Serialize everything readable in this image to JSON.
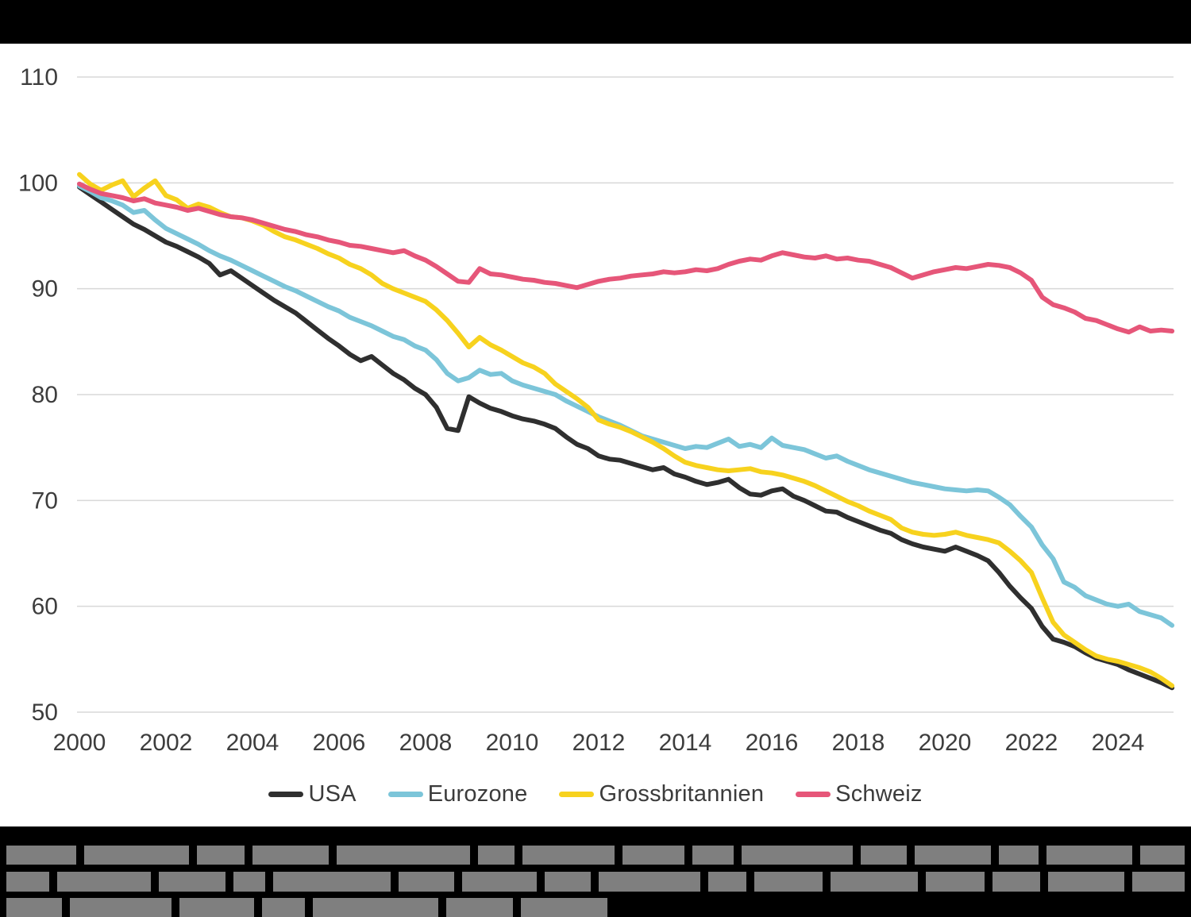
{
  "header": {
    "bar_color": "#000000"
  },
  "chart_data": {
    "type": "line",
    "title": "",
    "xlabel": "",
    "ylabel": "",
    "xlim": [
      2000,
      2025.3
    ],
    "ylim": [
      50,
      110
    ],
    "grid": "horizontal",
    "grid_color": "#d8d8d8",
    "tick_color": "#3d3d3d",
    "legend_position": "bottom-center",
    "xticks": [
      2000,
      2002,
      2004,
      2006,
      2008,
      2010,
      2012,
      2014,
      2016,
      2018,
      2020,
      2022,
      2024
    ],
    "yticks": [
      50,
      60,
      70,
      80,
      90,
      100,
      110
    ],
    "x_start": 2000,
    "x_step": 0.25,
    "series": [
      {
        "name": "USA",
        "color": "#2f2f2f",
        "values": [
          99.6,
          98.9,
          98.2,
          97.5,
          96.8,
          96.1,
          95.6,
          95.0,
          94.4,
          94.0,
          93.5,
          93.0,
          92.4,
          91.3,
          91.7,
          91.0,
          90.3,
          89.6,
          88.9,
          88.3,
          87.7,
          86.9,
          86.1,
          85.3,
          84.6,
          83.8,
          83.2,
          83.6,
          82.8,
          82.0,
          81.4,
          80.6,
          80.0,
          78.8,
          76.8,
          76.6,
          79.8,
          79.2,
          78.7,
          78.4,
          78.0,
          77.7,
          77.5,
          77.2,
          76.8,
          76.0,
          75.3,
          74.9,
          74.2,
          73.9,
          73.8,
          73.5,
          73.2,
          72.9,
          73.1,
          72.5,
          72.2,
          71.8,
          71.5,
          71.7,
          72.0,
          71.2,
          70.6,
          70.5,
          70.9,
          71.1,
          70.4,
          70.0,
          69.5,
          69.0,
          68.9,
          68.4,
          68.0,
          67.6,
          67.2,
          66.9,
          66.3,
          65.9,
          65.6,
          65.4,
          65.2,
          65.6,
          65.2,
          64.8,
          64.3,
          63.2,
          61.9,
          60.8,
          59.8,
          58.1,
          56.9,
          56.6,
          56.2,
          55.6,
          55.1,
          54.8,
          54.5,
          54.0,
          53.6,
          53.2,
          52.8,
          52.3
        ]
      },
      {
        "name": "Eurozone",
        "color": "#7cc5d9",
        "values": [
          99.7,
          99.2,
          98.6,
          98.3,
          97.9,
          97.2,
          97.4,
          96.5,
          95.7,
          95.2,
          94.7,
          94.2,
          93.6,
          93.1,
          92.7,
          92.2,
          91.7,
          91.2,
          90.7,
          90.2,
          89.8,
          89.3,
          88.8,
          88.3,
          87.9,
          87.3,
          86.9,
          86.5,
          86.0,
          85.5,
          85.2,
          84.6,
          84.2,
          83.3,
          82.0,
          81.3,
          81.6,
          82.3,
          81.9,
          82.0,
          81.3,
          80.9,
          80.6,
          80.3,
          80.0,
          79.4,
          78.9,
          78.4,
          77.9,
          77.5,
          77.1,
          76.6,
          76.1,
          75.8,
          75.5,
          75.2,
          74.9,
          75.1,
          75.0,
          75.4,
          75.8,
          75.1,
          75.3,
          75.0,
          75.9,
          75.2,
          75.0,
          74.8,
          74.4,
          74.0,
          74.2,
          73.7,
          73.3,
          72.9,
          72.6,
          72.3,
          72.0,
          71.7,
          71.5,
          71.3,
          71.1,
          71.0,
          70.9,
          71.0,
          70.9,
          70.3,
          69.6,
          68.5,
          67.5,
          65.8,
          64.5,
          62.3,
          61.8,
          61.0,
          60.6,
          60.2,
          60.0,
          60.2,
          59.5,
          59.2,
          58.9,
          58.2
        ]
      },
      {
        "name": "Grossbritannien",
        "color": "#f7d21e",
        "values": [
          100.8,
          99.9,
          99.3,
          99.8,
          100.2,
          98.7,
          99.5,
          100.2,
          98.8,
          98.4,
          97.6,
          98.0,
          97.7,
          97.2,
          96.8,
          96.7,
          96.4,
          96.0,
          95.4,
          94.9,
          94.6,
          94.2,
          93.8,
          93.3,
          92.9,
          92.3,
          91.9,
          91.3,
          90.5,
          90.0,
          89.6,
          89.2,
          88.8,
          88.0,
          87.0,
          85.8,
          84.5,
          85.4,
          84.7,
          84.2,
          83.6,
          83.0,
          82.6,
          82.0,
          81.0,
          80.3,
          79.6,
          78.8,
          77.6,
          77.2,
          76.9,
          76.5,
          76.0,
          75.5,
          74.9,
          74.2,
          73.6,
          73.3,
          73.1,
          72.9,
          72.8,
          72.9,
          73.0,
          72.7,
          72.6,
          72.4,
          72.1,
          71.8,
          71.4,
          70.9,
          70.4,
          69.9,
          69.5,
          69.0,
          68.6,
          68.2,
          67.4,
          67.0,
          66.8,
          66.7,
          66.8,
          67.0,
          66.7,
          66.5,
          66.3,
          66.0,
          65.2,
          64.3,
          63.2,
          60.8,
          58.5,
          57.3,
          56.6,
          55.9,
          55.3,
          55.0,
          54.8,
          54.5,
          54.2,
          53.8,
          53.2,
          52.5
        ]
      },
      {
        "name": "Schweiz",
        "color": "#e65679",
        "values": [
          99.9,
          99.4,
          99.0,
          98.8,
          98.6,
          98.3,
          98.5,
          98.1,
          97.9,
          97.7,
          97.4,
          97.6,
          97.3,
          97.0,
          96.8,
          96.7,
          96.5,
          96.2,
          95.9,
          95.6,
          95.4,
          95.1,
          94.9,
          94.6,
          94.4,
          94.1,
          94.0,
          93.8,
          93.6,
          93.4,
          93.6,
          93.1,
          92.7,
          92.1,
          91.4,
          90.7,
          90.6,
          91.9,
          91.4,
          91.3,
          91.1,
          90.9,
          90.8,
          90.6,
          90.5,
          90.3,
          90.1,
          90.4,
          90.7,
          90.9,
          91.0,
          91.2,
          91.3,
          91.4,
          91.6,
          91.5,
          91.6,
          91.8,
          91.7,
          91.9,
          92.3,
          92.6,
          92.8,
          92.7,
          93.1,
          93.4,
          93.2,
          93.0,
          92.9,
          93.1,
          92.8,
          92.9,
          92.7,
          92.6,
          92.3,
          92.0,
          91.5,
          91.0,
          91.3,
          91.6,
          91.8,
          92.0,
          91.9,
          92.1,
          92.3,
          92.2,
          92.0,
          91.5,
          90.8,
          89.2,
          88.5,
          88.2,
          87.8,
          87.2,
          87.0,
          86.6,
          86.2,
          85.9,
          86.4,
          86.0,
          86.1,
          86.0
        ]
      }
    ]
  },
  "legend": {
    "items": [
      {
        "label": "USA",
        "color": "#2f2f2f"
      },
      {
        "label": "Eurozone",
        "color": "#7cc5d9"
      },
      {
        "label": "Grossbritannien",
        "color": "#f7d21e"
      },
      {
        "label": "Schweiz",
        "color": "#e65679"
      }
    ]
  },
  "caption": {
    "style": "redacted-text",
    "block_color": "#7f7f7f",
    "background": "#000000",
    "rows": [
      {
        "blocks": [
          88,
          132,
          60,
          96,
          168,
          46,
          116,
          78,
          52,
          140,
          58,
          96,
          50,
          108,
          56
        ]
      },
      {
        "blocks": [
          54,
          118,
          84,
          40,
          148,
          70,
          94,
          58,
          128,
          48,
          86,
          110,
          74,
          60,
          96,
          66
        ]
      },
      {
        "blocks": [
          70,
          128,
          94,
          54,
          158,
          84,
          109
        ]
      }
    ]
  }
}
